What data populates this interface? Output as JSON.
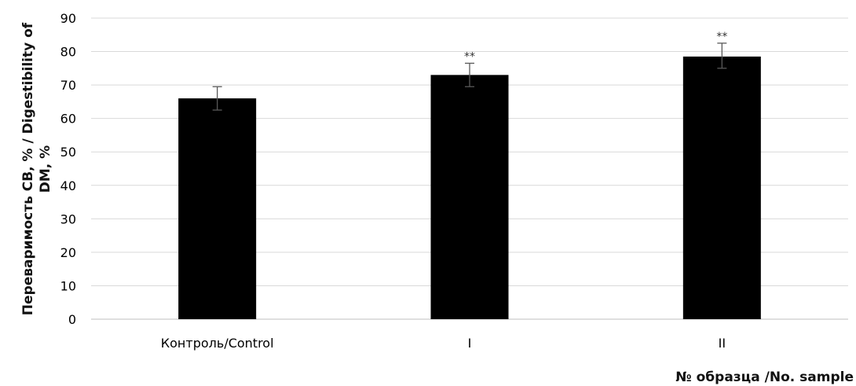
{
  "chart_data": {
    "type": "bar",
    "categories": [
      "Контроль/Control",
      "I",
      "II"
    ],
    "values": [
      66,
      73,
      78.5
    ],
    "error_low": [
      62.5,
      69.5,
      75
    ],
    "error_high": [
      69.5,
      76.5,
      82.5
    ],
    "annotations": [
      "",
      "**",
      "**"
    ],
    "ylim": [
      0,
      90
    ],
    "yticks": [
      0,
      10,
      20,
      30,
      40,
      50,
      60,
      70,
      80,
      90
    ],
    "ylabel_line1": "Переваримость  СВ, % / Digestibility of",
    "ylabel_line2": "DM, %",
    "xlabel": "№ образца  /No. sample",
    "grid": true,
    "bar_color": "#000000",
    "grid_color": "#d9d9d9"
  }
}
